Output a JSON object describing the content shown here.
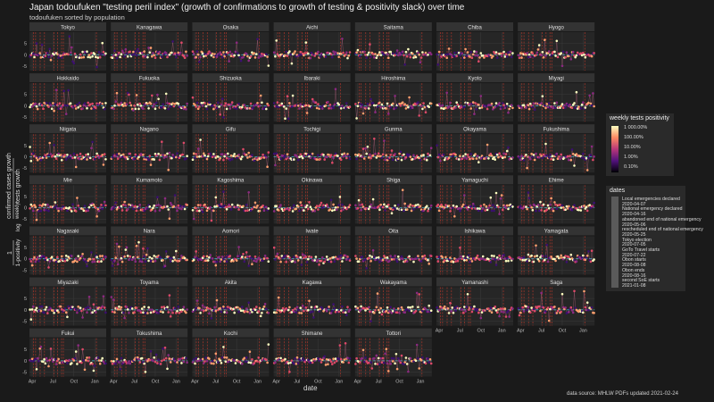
{
  "title": "Japan todoufuken \"testing peril index\" (growth of confirmations to growth of testing & positivity slack) over time",
  "subtitle": "todoufuken sorted by population",
  "caption": "data source: MHLW PDFs updated  2021-02-24",
  "colors": {
    "background": "#1a1a1a",
    "panel": "#262626",
    "strip": "#333333",
    "grid": "#3a3a3a",
    "zero_line": "#3ab0c8",
    "event_line": "#c0392b"
  },
  "chart_data": {
    "type": "scatter",
    "layout": "small-multiples",
    "xlabel": "date",
    "ylabel": {
      "fraction_numerator": "1",
      "fraction_denominator": "1-positivity",
      "log_prefix": "log",
      "log_numerator": "confirmed cases growth",
      "log_denominator": "tests growth",
      "suffix": "weekly"
    },
    "x_ticks": [
      "Apr",
      "Jul",
      "Oct",
      "Jan"
    ],
    "y_ticks": [
      5,
      0,
      -5
    ],
    "ylim": [
      -7,
      10
    ],
    "color_scale": {
      "title": "weekly tests positivity",
      "ticks": [
        "1 000.00%",
        "100.00%",
        "10.00%",
        "1.00%",
        "0.10%"
      ],
      "palette": "magma"
    },
    "panels": [
      "Tokyo",
      "Kanagawa",
      "Osaka",
      "Aichi",
      "Saitama",
      "Chiba",
      "Hyogo",
      "Hokkaido",
      "Fukuoka",
      "Shizuoka",
      "Ibaraki",
      "Hiroshima",
      "Kyoto",
      "Miyagi",
      "Niigata",
      "Nagano",
      "Gifu",
      "Tochigi",
      "Gunma",
      "Okayama",
      "Fukushima",
      "Mie",
      "Kumamoto",
      "Kagoshima",
      "Okinawa",
      "Shiga",
      "Yamaguchi",
      "Ehime",
      "Nagasaki",
      "Nara",
      "Aomori",
      "Iwate",
      "Oita",
      "Ishikawa",
      "Yamagata",
      "Miyazaki",
      "Toyama",
      "Akita",
      "Kagawa",
      "Wakayama",
      "Yamanashi",
      "Saga",
      "Fukui",
      "Tokushima",
      "Kochi",
      "Shimane",
      "Tottori"
    ],
    "dates_legend": {
      "title": "dates",
      "items": [
        "Local emergencies declared",
        "2020-04-07",
        "National emergency declared",
        "2020-04-16",
        "abandoned end of national emergency",
        "2020-05-06",
        "rescheduled end of national emergency",
        "2020-05-25",
        "Tokyo election",
        "2020-07-05",
        "GoTo Travel starts",
        "2020-07-22",
        "Obon starts",
        "2020-08-08",
        "Obon ends",
        "2020-08-16",
        "second SoE starts",
        "2021-01-08"
      ]
    },
    "event_dates": [
      "2020-04-07",
      "2020-04-16",
      "2020-05-06",
      "2020-05-25",
      "2020-07-05",
      "2020-07-22",
      "2020-08-08",
      "2020-08-16",
      "2021-01-08"
    ],
    "date_range": [
      "2020-03-20",
      "2021-02-20"
    ]
  }
}
